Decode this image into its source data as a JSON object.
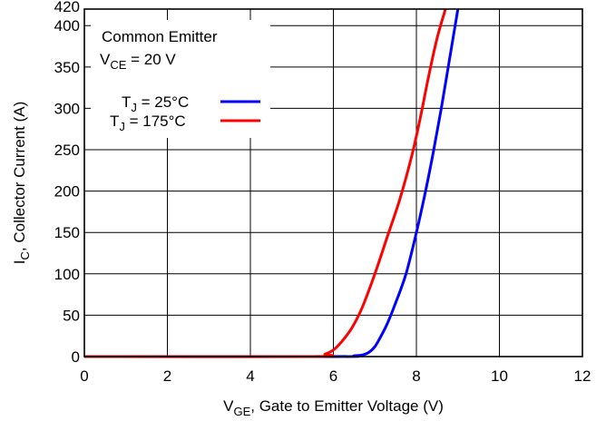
{
  "chart_data": {
    "type": "line",
    "title": "",
    "xlabel": {
      "main": "V",
      "sub": "GE",
      "rest": ", Gate to Emitter Voltage (V)"
    },
    "ylabel": {
      "main": "I",
      "sub": "C",
      "rest": ", Collector Current (A)"
    },
    "xlim": [
      0,
      12
    ],
    "ylim": [
      0,
      420
    ],
    "x_ticks": [
      0,
      2,
      4,
      6,
      8,
      10,
      12
    ],
    "x_tick_labels": [
      "0",
      "2",
      "4",
      "6",
      "8",
      "10",
      "12"
    ],
    "y_ticks": [
      0,
      50,
      100,
      150,
      200,
      250,
      300,
      350,
      400,
      420
    ],
    "y_tick_labels": [
      "0",
      "50",
      "100",
      "150",
      "200",
      "250",
      "300",
      "350",
      "400",
      "420"
    ],
    "grid": true,
    "legend_placement": "top-left",
    "annotation": {
      "line1": "Common Emitter",
      "line2_main": "V",
      "line2_sub": "CE",
      "line2_rest": " = 20 V"
    },
    "series": [
      {
        "name_main": "T",
        "name_sub": "J",
        "name_rest": " = 25°C",
        "color": "#0000ff",
        "x": [
          0,
          6.0,
          6.5,
          6.7,
          6.85,
          7.0,
          7.15,
          7.3,
          7.5,
          7.75,
          8.0,
          8.2,
          8.4,
          8.6,
          8.8,
          9.0
        ],
        "y": [
          0,
          0,
          1,
          2,
          5,
          12,
          25,
          40,
          65,
          100,
          150,
          195,
          245,
          300,
          360,
          420
        ]
      },
      {
        "name_main": "T",
        "name_sub": "J",
        "name_rest": " = 175°C",
        "color": "#ff0000",
        "x": [
          0,
          5.5,
          5.8,
          6.0,
          6.2,
          6.45,
          6.7,
          7.0,
          7.3,
          7.6,
          7.9,
          8.1,
          8.3,
          8.5,
          8.7
        ],
        "y": [
          0,
          0,
          3,
          8,
          18,
          35,
          60,
          100,
          145,
          190,
          245,
          290,
          340,
          385,
          420
        ]
      }
    ]
  }
}
